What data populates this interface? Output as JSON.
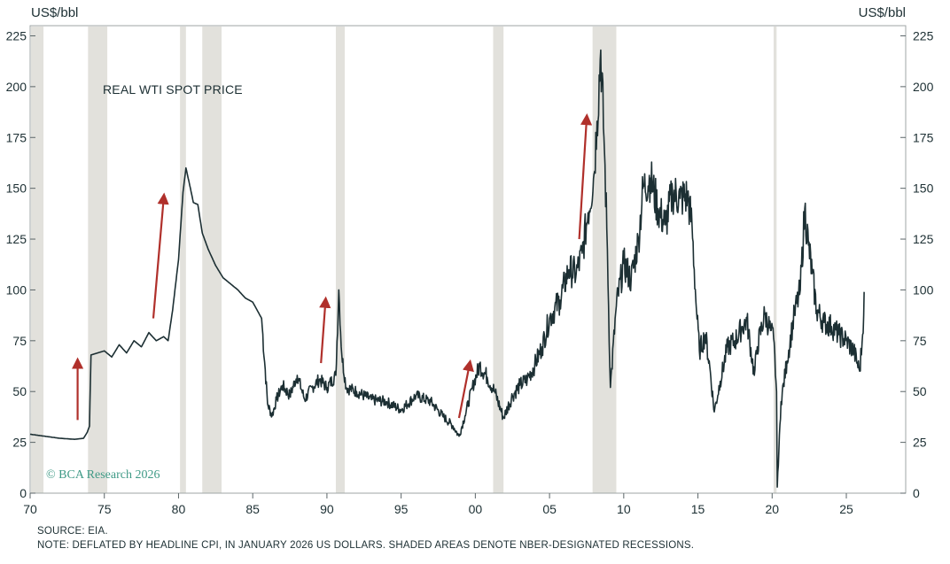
{
  "chart_data": {
    "type": "line",
    "title": "REAL WTI SPOT PRICE",
    "ylabel_left": "US$/bbl",
    "ylabel_right": "US$/bbl",
    "xlim": [
      1970,
      2029
    ],
    "ylim": [
      0,
      230
    ],
    "yticks": [
      0,
      25,
      50,
      75,
      100,
      125,
      150,
      175,
      200,
      225
    ],
    "ytick_labels": [
      "0",
      "25",
      "50",
      "75",
      "100",
      "125",
      "150",
      "175",
      "200",
      "225"
    ],
    "xticks": [
      1970,
      1975,
      1980,
      1985,
      1990,
      1995,
      2000,
      2005,
      2010,
      2015,
      2020,
      2025
    ],
    "xtick_labels": [
      "70",
      "75",
      "80",
      "85",
      "90",
      "95",
      "00",
      "05",
      "10",
      "15",
      "20",
      "25"
    ],
    "series": [
      {
        "name": "Real WTI spot price",
        "color": "#1c2f33",
        "x": [
          1970.0,
          1971.0,
          1972.0,
          1973.0,
          1973.6,
          1973.85,
          1974.0,
          1974.1,
          1975.0,
          1975.5,
          1976.0,
          1976.5,
          1977.0,
          1977.5,
          1978.0,
          1978.5,
          1979.0,
          1979.3,
          1979.6,
          1980.0,
          1980.3,
          1980.5,
          1980.8,
          1981.0,
          1981.3,
          1981.6,
          1982.0,
          1982.5,
          1983.0,
          1983.5,
          1984.0,
          1984.5,
          1985.0,
          1985.6,
          1986.0,
          1986.3,
          1986.6,
          1987.0,
          1987.5,
          1988.0,
          1988.5,
          1989.0,
          1989.5,
          1990.0,
          1990.6,
          1990.8,
          1991.0,
          1991.3,
          1992.0,
          1993.0,
          1994.0,
          1995.0,
          1996.0,
          1997.0,
          1997.8,
          1998.5,
          1998.9,
          1999.3,
          1999.8,
          2000.3,
          2000.8,
          2001.3,
          2001.9,
          2002.5,
          2003.0,
          2003.5,
          2004.0,
          2004.5,
          2005.0,
          2005.7,
          2006.3,
          2006.8,
          2007.2,
          2007.6,
          2008.0,
          2008.2,
          2008.45,
          2008.7,
          2008.9,
          2009.1,
          2009.5,
          2010.0,
          2010.5,
          2011.0,
          2011.3,
          2011.8,
          2012.3,
          2012.8,
          2013.3,
          2013.8,
          2014.3,
          2014.6,
          2014.9,
          2015.1,
          2015.5,
          2015.8,
          2016.1,
          2016.5,
          2017.0,
          2017.5,
          2018.0,
          2018.3,
          2018.8,
          2019.0,
          2019.5,
          2019.9,
          2020.1,
          2020.3,
          2020.35,
          2020.6,
          2021.0,
          2021.5,
          2021.9,
          2022.2,
          2022.45,
          2022.7,
          2023.0,
          2023.5,
          2024.0,
          2024.5,
          2025.0,
          2025.5,
          2025.9,
          2026.1,
          2026.2
        ],
        "values": [
          29,
          28,
          27,
          26.5,
          27,
          30,
          33,
          68,
          70,
          67,
          73,
          69,
          75,
          72,
          79,
          75,
          77,
          75,
          90,
          115,
          148,
          160,
          150,
          143,
          142,
          128,
          120,
          112,
          106,
          103,
          100,
          96,
          94,
          86,
          44,
          38,
          46,
          53,
          48,
          58,
          46,
          52,
          56,
          52,
          58,
          100,
          68,
          52,
          50,
          46,
          45,
          41,
          48,
          45,
          38,
          33,
          28,
          38,
          52,
          63,
          57,
          50,
          37,
          48,
          53,
          56,
          63,
          72,
          86,
          95,
          110,
          108,
          118,
          138,
          157,
          183,
          218,
          168,
          120,
          52,
          92,
          113,
          105,
          125,
          150,
          155,
          140,
          132,
          148,
          145,
          146,
          132,
          90,
          70,
          78,
          62,
          40,
          55,
          72,
          75,
          82,
          85,
          58,
          72,
          88,
          80,
          76,
          50,
          3,
          45,
          65,
          88,
          100,
          140,
          122,
          108,
          90,
          84,
          82,
          78,
          75,
          70,
          60,
          78,
          99
        ]
      }
    ],
    "recessions": [
      [
        1969.9,
        1970.9
      ],
      [
        1973.9,
        1975.2
      ],
      [
        1980.1,
        1980.5
      ],
      [
        1981.6,
        1982.9
      ],
      [
        1990.6,
        1991.2
      ],
      [
        2001.2,
        2001.9
      ],
      [
        2007.9,
        2009.5
      ],
      [
        2020.1,
        2020.3
      ]
    ],
    "annotations": {
      "arrows": [
        {
          "x0": 1973.2,
          "y0": 36,
          "x1": 1973.2,
          "y1": 64
        },
        {
          "x0": 1978.3,
          "y0": 86,
          "x1": 1979.0,
          "y1": 145
        },
        {
          "x0": 1989.6,
          "y0": 64,
          "x1": 1989.9,
          "y1": 94
        },
        {
          "x0": 1998.9,
          "y0": 37,
          "x1": 1999.6,
          "y1": 63
        },
        {
          "x0": 2007.0,
          "y0": 125,
          "x1": 2007.5,
          "y1": 184
        }
      ],
      "arrow_color": "#b0302b",
      "recession_color": "#e2e1dc"
    }
  },
  "watermark": "© BCA Research 2026",
  "footnotes": {
    "source": "SOURCE: EIA.",
    "note": "NOTE: DEFLATED BY HEADLINE CPI, IN JANUARY 2026 US DOLLARS. SHADED AREAS DENOTE NBER-DESIGNATED RECESSIONS."
  }
}
